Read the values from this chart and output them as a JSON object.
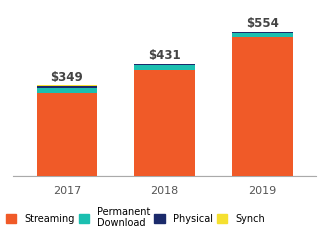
{
  "years": [
    "2017",
    "2018",
    "2019"
  ],
  "totals": [
    "$349",
    "$431",
    "$554"
  ],
  "streaming": [
    318,
    408,
    535
  ],
  "permanent_download": [
    22,
    18,
    13
  ],
  "physical": [
    7,
    4,
    4
  ],
  "synch": [
    2,
    1,
    2
  ],
  "colors": {
    "streaming": "#F05A28",
    "permanent_download": "#1BBFB0",
    "physical": "#1B2A6B",
    "synch": "#F5E030"
  },
  "background": "#ffffff",
  "bar_width": 0.62,
  "ylim": [
    0,
    610
  ],
  "legend_labels": [
    "Streaming",
    "Permanent\nDownload",
    "Physical",
    "Synch"
  ],
  "label_fontsize": 8.5,
  "tick_fontsize": 8,
  "legend_fontsize": 7
}
